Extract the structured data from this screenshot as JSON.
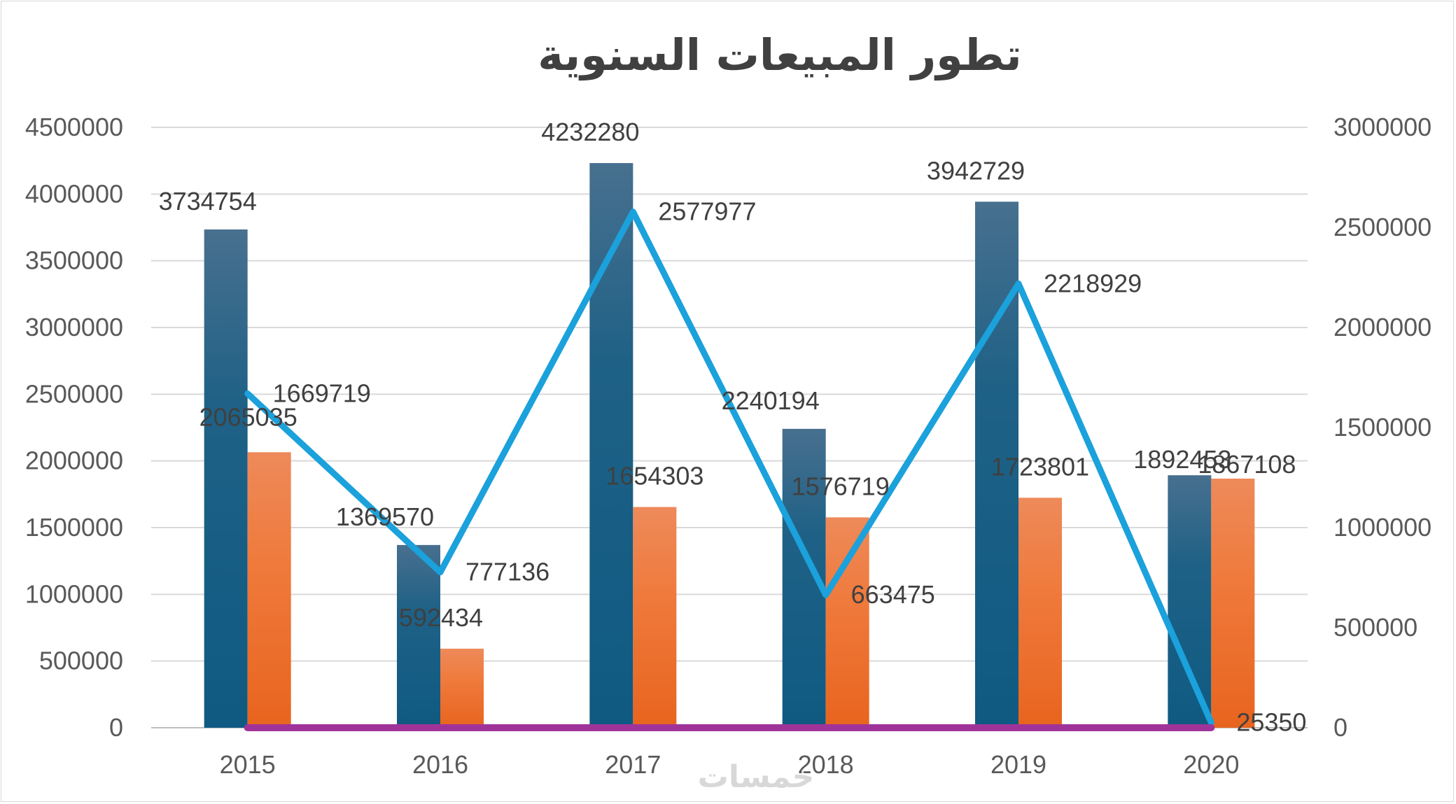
{
  "chart_data": {
    "type": "bar",
    "title": "تطور المبيعات السنوية",
    "categories": [
      "2015",
      "2016",
      "2017",
      "2018",
      "2019",
      "2020"
    ],
    "series": [
      {
        "kind": "bar",
        "axis": "left",
        "color": "#1f5f86",
        "values": [
          3734754,
          1369570,
          4232280,
          2240194,
          3942729,
          1892453
        ]
      },
      {
        "kind": "bar",
        "axis": "left",
        "color": "#ef7a3c",
        "values": [
          2065035,
          592434,
          1654303,
          1576719,
          1723801,
          1867108
        ]
      },
      {
        "kind": "line",
        "axis": "right",
        "color": "#1ba1db",
        "values": [
          1669719,
          777136,
          2577977,
          663475,
          2218929,
          25350
        ]
      },
      {
        "kind": "line",
        "axis": "left",
        "color": "#a0339a",
        "values": [
          0,
          0,
          0,
          0,
          0,
          0
        ]
      }
    ],
    "y_left": {
      "ylim": [
        0,
        4500000
      ],
      "ticks": [
        "0",
        "500000",
        "1000000",
        "1500000",
        "2000000",
        "2500000",
        "3000000",
        "3500000",
        "4000000",
        "4500000"
      ]
    },
    "y_right": {
      "ylim": [
        0,
        3000000
      ],
      "ticks": [
        "0",
        "500000",
        "1000000",
        "1500000",
        "2000000",
        "2500000",
        "3000000"
      ]
    },
    "grid": true,
    "legend": "none"
  },
  "watermark": "خمسات"
}
